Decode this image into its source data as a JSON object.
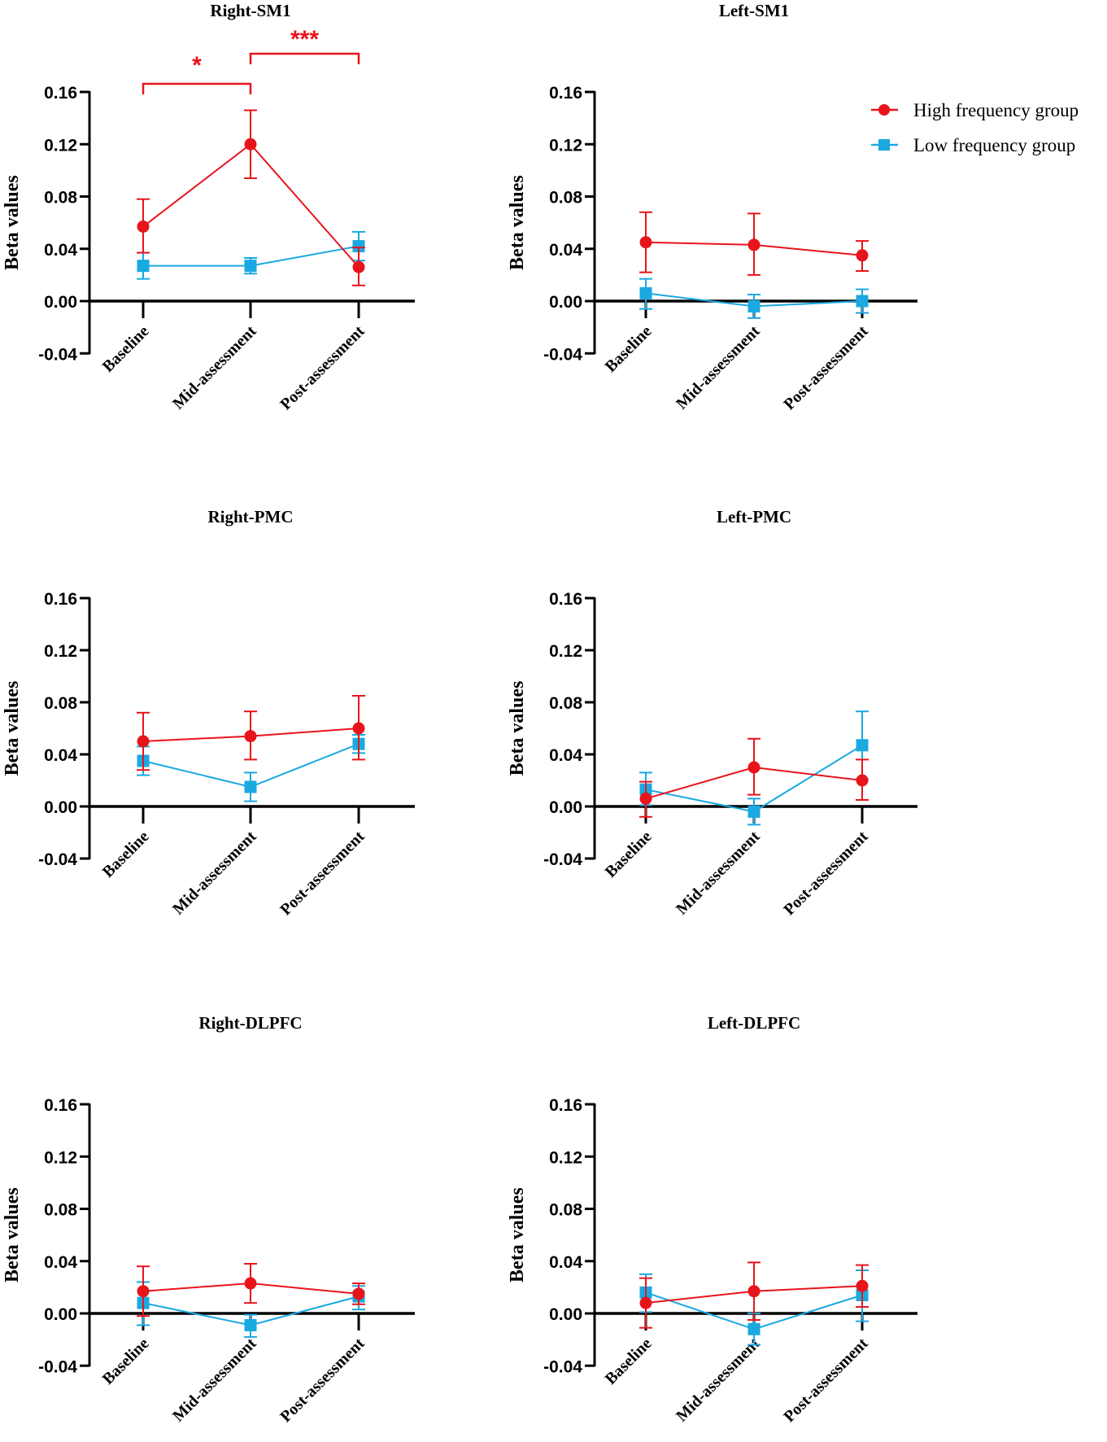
{
  "colors": {
    "high": "#e8141b",
    "low": "#1aa9e1",
    "axis": "#000000"
  },
  "legend": {
    "high_label": "High frequency group",
    "low_label": "Low frequency group",
    "high_icon": "circle-marker",
    "low_icon": "square-marker"
  },
  "chart_data": [
    {
      "type": "line",
      "title": "Right-SM1",
      "ylabel": "Beta values",
      "categories": [
        "Baseline",
        "Mid-assessment",
        "Post-assessment"
      ],
      "yticks": [
        "0.16",
        "0.12",
        "0.08",
        "0.04",
        "0.00",
        "-0.04"
      ],
      "ylim": [
        -0.04,
        0.16
      ],
      "series": [
        {
          "name": "High frequency group",
          "values": [
            0.057,
            0.12,
            0.026
          ],
          "err_upper": [
            0.078,
            0.146,
            0.041
          ],
          "err_lower": [
            0.037,
            0.094,
            0.012
          ]
        },
        {
          "name": "Low frequency group",
          "values": [
            0.027,
            0.027,
            0.042
          ],
          "err_upper": [
            0.037,
            0.033,
            0.053
          ],
          "err_lower": [
            0.017,
            0.021,
            0.031
          ]
        }
      ],
      "annotations": [
        {
          "text": "*",
          "from": "Baseline",
          "to": "Mid-assessment"
        },
        {
          "text": "***",
          "from": "Mid-assessment",
          "to": "Post-assessment"
        }
      ]
    },
    {
      "type": "line",
      "title": "Left-SM1",
      "ylabel": "Beta values",
      "categories": [
        "Baseline",
        "Mid-assessment",
        "Post-assessment"
      ],
      "yticks": [
        "0.16",
        "0.12",
        "0.08",
        "0.04",
        "0.00",
        "-0.04"
      ],
      "ylim": [
        -0.04,
        0.16
      ],
      "series": [
        {
          "name": "High frequency group",
          "values": [
            0.045,
            0.043,
            0.035
          ],
          "err_upper": [
            0.068,
            0.067,
            0.046
          ],
          "err_lower": [
            0.022,
            0.02,
            0.023
          ]
        },
        {
          "name": "Low frequency group",
          "values": [
            0.006,
            -0.004,
            0.0
          ],
          "err_upper": [
            0.017,
            0.005,
            0.009
          ],
          "err_lower": [
            -0.006,
            -0.013,
            -0.009
          ]
        }
      ],
      "annotations": []
    },
    {
      "type": "line",
      "title": "Right-PMC",
      "ylabel": "Beta values",
      "categories": [
        "Baseline",
        "Mid-assessment",
        "Post-assessment"
      ],
      "yticks": [
        "0.16",
        "0.12",
        "0.08",
        "0.04",
        "0.00",
        "-0.04"
      ],
      "ylim": [
        -0.04,
        0.16
      ],
      "series": [
        {
          "name": "High frequency group",
          "values": [
            0.05,
            0.054,
            0.06
          ],
          "err_upper": [
            0.072,
            0.073,
            0.085
          ],
          "err_lower": [
            0.028,
            0.036,
            0.036
          ]
        },
        {
          "name": "Low frequency group",
          "values": [
            0.035,
            0.015,
            0.048
          ],
          "err_upper": [
            0.046,
            0.026,
            0.055
          ],
          "err_lower": [
            0.024,
            0.004,
            0.041
          ]
        }
      ],
      "annotations": []
    },
    {
      "type": "line",
      "title": "Left-PMC",
      "ylabel": "Beta values",
      "categories": [
        "Baseline",
        "Mid-assessment",
        "Post-assessment"
      ],
      "yticks": [
        "0.16",
        "0.12",
        "0.08",
        "0.04",
        "0.00",
        "-0.04"
      ],
      "ylim": [
        -0.04,
        0.16
      ],
      "series": [
        {
          "name": "High frequency group",
          "values": [
            0.006,
            0.03,
            0.02
          ],
          "err_upper": [
            0.019,
            0.052,
            0.036
          ],
          "err_lower": [
            -0.008,
            0.009,
            0.005
          ]
        },
        {
          "name": "Low frequency group",
          "values": [
            0.013,
            -0.004,
            0.047
          ],
          "err_upper": [
            0.026,
            0.006,
            0.073
          ],
          "err_lower": [
            0.001,
            -0.014,
            0.021
          ]
        }
      ],
      "annotations": []
    },
    {
      "type": "line",
      "title": "Right-DLPFC",
      "ylabel": "Beta values",
      "categories": [
        "Baseline",
        "Mid-assessment",
        "Post-assessment"
      ],
      "yticks": [
        "0.16",
        "0.12",
        "0.08",
        "0.04",
        "0.00",
        "-0.04"
      ],
      "ylim": [
        -0.04,
        0.16
      ],
      "series": [
        {
          "name": "High frequency group",
          "values": [
            0.017,
            0.023,
            0.015
          ],
          "err_upper": [
            0.036,
            0.038,
            0.023
          ],
          "err_lower": [
            -0.002,
            0.008,
            0.007
          ]
        },
        {
          "name": "Low frequency group",
          "values": [
            0.008,
            -0.009,
            0.013
          ],
          "err_upper": [
            0.024,
            -0.001,
            0.021
          ],
          "err_lower": [
            -0.009,
            -0.018,
            0.003
          ]
        }
      ],
      "annotations": []
    },
    {
      "type": "line",
      "title": "Left-DLPFC",
      "ylabel": "Beta values",
      "categories": [
        "Baseline",
        "Mid-assessment",
        "Post-assessment"
      ],
      "yticks": [
        "0.16",
        "0.12",
        "0.08",
        "0.04",
        "0.00",
        "-0.04"
      ],
      "ylim": [
        -0.04,
        0.16
      ],
      "series": [
        {
          "name": "High frequency group",
          "values": [
            0.008,
            0.017,
            0.021
          ],
          "err_upper": [
            0.027,
            0.039,
            0.037
          ],
          "err_lower": [
            -0.011,
            -0.005,
            0.005
          ]
        },
        {
          "name": "Low frequency group",
          "values": [
            0.016,
            -0.012,
            0.014
          ],
          "err_upper": [
            0.03,
            0.0,
            0.033
          ],
          "err_lower": [
            0.001,
            -0.024,
            -0.006
          ]
        }
      ],
      "annotations": []
    }
  ]
}
